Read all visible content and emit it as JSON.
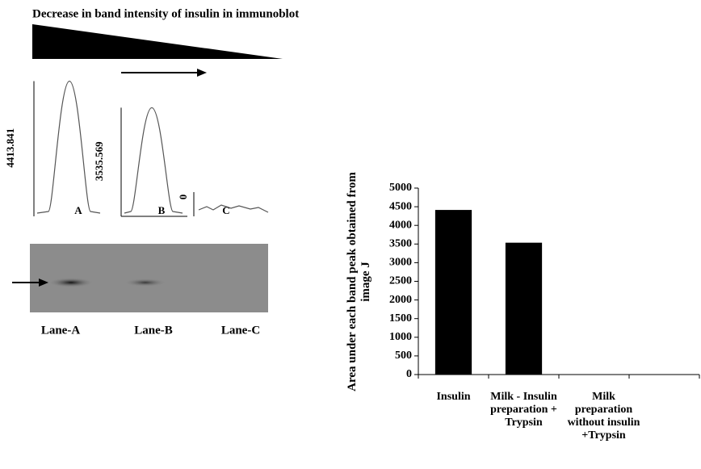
{
  "figure": {
    "title": "Decrease in band intensity of insulin in immunoblot",
    "peaks": [
      {
        "value": 4413.841,
        "label": "A"
      },
      {
        "value": 3535.569,
        "label": "B"
      },
      {
        "value": 0,
        "label": "C"
      }
    ],
    "lanes": [
      "Lane-A",
      "Lane-B",
      "Lane-C"
    ]
  },
  "chart_data": {
    "type": "bar",
    "ylabel": "Area under each band peak obtained from image J",
    "categories": [
      "Insulin",
      "Milk - Insulin preparation + Trypsin",
      "Milk preparation without insulin +Trypsin"
    ],
    "values": [
      4413.841,
      3535.569,
      0
    ],
    "color": "#000000",
    "ylim": [
      0,
      5000
    ],
    "yticks": [
      0,
      500,
      1000,
      1500,
      2000,
      2500,
      3000,
      3500,
      4000,
      4500,
      5000
    ]
  }
}
